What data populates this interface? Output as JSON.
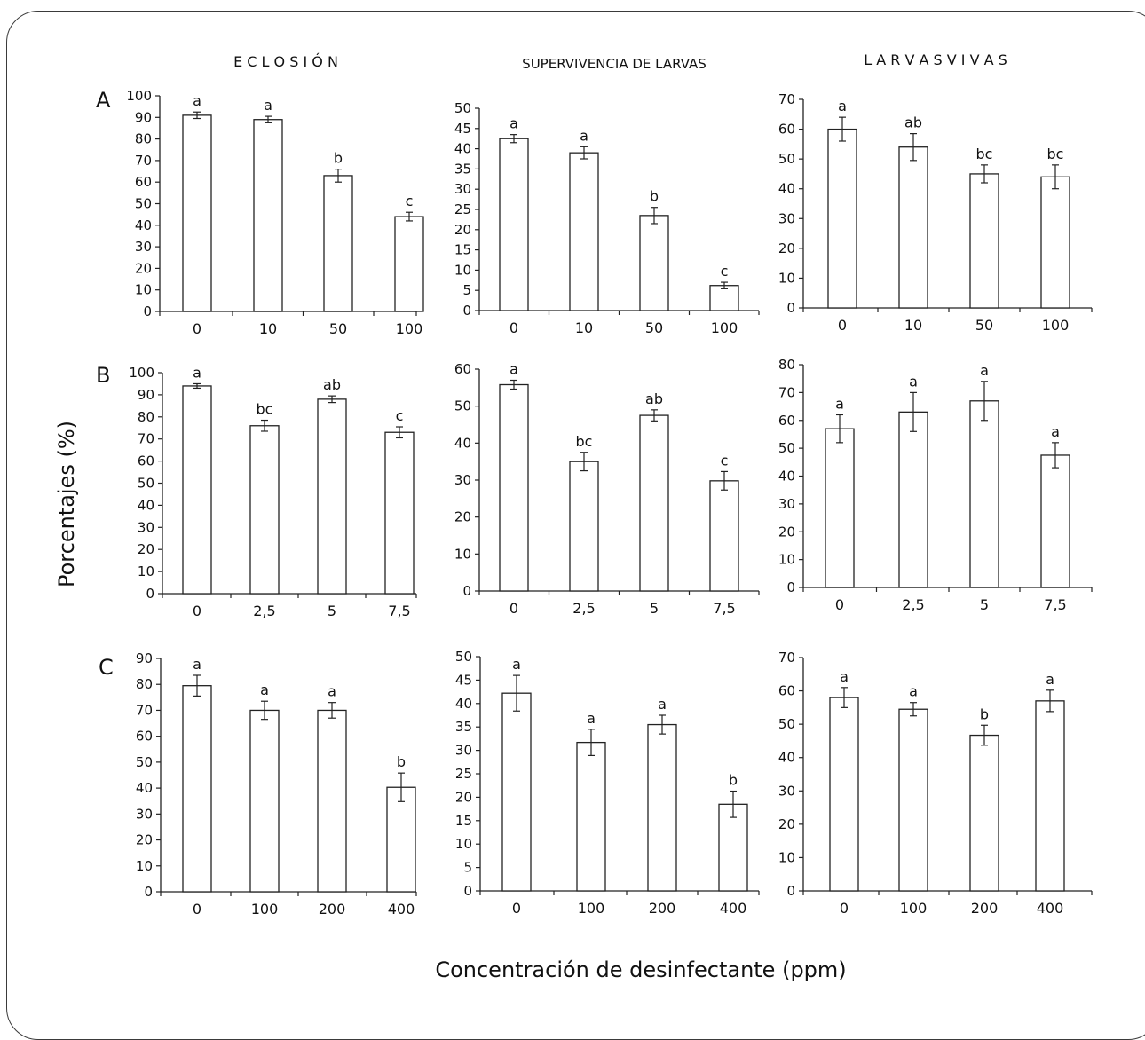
{
  "figure": {
    "y_title": "Porcentajes (%)",
    "x_title": "Concentración de desinfectante (ppm)",
    "column_titles": [
      "E C L O S I Ó N",
      "SUPERVIVENCIA DE LARVAS",
      "L A R V A S   V I V A S"
    ],
    "row_labels": [
      "A",
      "B",
      "C"
    ]
  },
  "chart_data": [
    {
      "type": "bar",
      "row": "A",
      "col": "E C L O S I Ó N",
      "categories": [
        "0",
        "10",
        "50",
        "100"
      ],
      "values": [
        91,
        89,
        63,
        44
      ],
      "errors": [
        1.5,
        1.5,
        3,
        2
      ],
      "letters": [
        "a",
        "a",
        "b",
        "c"
      ],
      "ylim": [
        0,
        100
      ],
      "ytick_step": 10
    },
    {
      "type": "bar",
      "row": "A",
      "col": "SUPERVIVENCIA DE LARVAS",
      "categories": [
        "0",
        "10",
        "50",
        "100"
      ],
      "values": [
        42.5,
        39,
        23.5,
        6.2
      ],
      "errors": [
        1,
        1.5,
        2,
        0.8
      ],
      "letters": [
        "a",
        "a",
        "b",
        "c"
      ],
      "ylim": [
        0,
        50
      ],
      "ytick_step": 5
    },
    {
      "type": "bar",
      "row": "A",
      "col": "L A R V A S   V I V A S",
      "categories": [
        "0",
        "10",
        "50",
        "100"
      ],
      "values": [
        60,
        54,
        45,
        44
      ],
      "errors": [
        4,
        4.5,
        3,
        4
      ],
      "letters": [
        "a",
        "ab",
        "bc",
        "bc"
      ],
      "ylim": [
        0,
        70
      ],
      "ytick_step": 10
    },
    {
      "type": "bar",
      "row": "B",
      "col": "E C L O S I Ó N",
      "categories": [
        "0",
        "2,5",
        "5",
        "7,5"
      ],
      "values": [
        94,
        76,
        88,
        73
      ],
      "errors": [
        1,
        2.5,
        1.5,
        2.5
      ],
      "letters": [
        "a",
        "bc",
        "ab",
        "c"
      ],
      "ylim": [
        0,
        100
      ],
      "ytick_step": 10
    },
    {
      "type": "bar",
      "row": "B",
      "col": "SUPERVIVENCIA DE LARVAS",
      "categories": [
        "0",
        "2,5",
        "5",
        "7,5"
      ],
      "values": [
        55.8,
        35,
        47.5,
        29.8
      ],
      "errors": [
        1.2,
        2.5,
        1.5,
        2.5
      ],
      "letters": [
        "a",
        "bc",
        "ab",
        "c"
      ],
      "ylim": [
        0,
        60
      ],
      "ytick_step": 10
    },
    {
      "type": "bar",
      "row": "B",
      "col": "L A R V A S   V I V A S",
      "categories": [
        "0",
        "2,5",
        "5",
        "7,5"
      ],
      "values": [
        57,
        63,
        67,
        47.5
      ],
      "errors": [
        5,
        7,
        7,
        4.5
      ],
      "letters": [
        "a",
        "a",
        "a",
        "a"
      ],
      "ylim": [
        0,
        80
      ],
      "ytick_step": 10
    },
    {
      "type": "bar",
      "row": "C",
      "col": "E C L O S I Ó N",
      "categories": [
        "0",
        "100",
        "200",
        "400"
      ],
      "values": [
        79.5,
        70,
        70,
        40.3
      ],
      "errors": [
        4,
        3.5,
        3,
        5.5
      ],
      "letters": [
        "a",
        "a",
        "a",
        "b"
      ],
      "ylim": [
        0,
        90
      ],
      "ytick_step": 10
    },
    {
      "type": "bar",
      "row": "C",
      "col": "SUPERVIVENCIA DE LARVAS",
      "categories": [
        "0",
        "100",
        "200",
        "400"
      ],
      "values": [
        42.2,
        31.7,
        35.5,
        18.5
      ],
      "errors": [
        3.8,
        2.8,
        2,
        2.8
      ],
      "letters": [
        "a",
        "a",
        "a",
        "b"
      ],
      "ylim": [
        0,
        50
      ],
      "ytick_step": 5
    },
    {
      "type": "bar",
      "row": "C",
      "col": "L A R V A S   V I V A S",
      "categories": [
        "0",
        "100",
        "200",
        "400"
      ],
      "values": [
        58,
        54.5,
        46.7,
        57
      ],
      "errors": [
        3,
        2,
        3,
        3.2
      ],
      "letters": [
        "a",
        "a",
        "b",
        "a"
      ],
      "ylim": [
        0,
        70
      ],
      "ytick_step": 10
    }
  ]
}
